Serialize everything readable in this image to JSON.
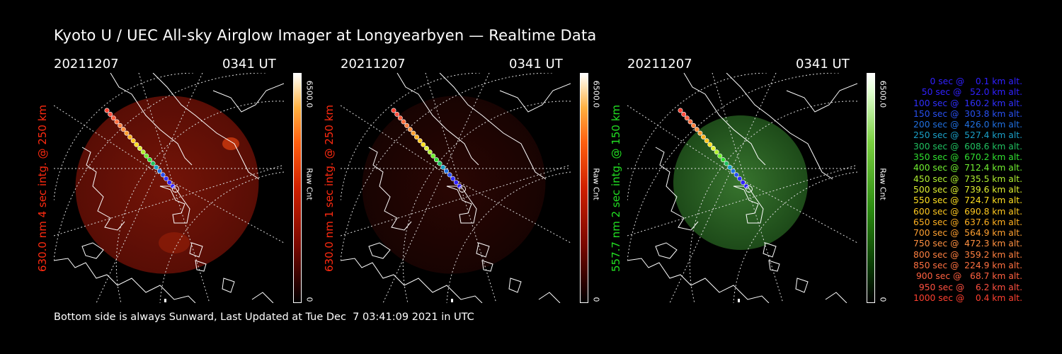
{
  "title": "Kyoto U / UEC All-sky Airglow Imager at Longyearbyen — Realtime Data",
  "footer": "Bottom side is always Sunward, Last Updated at Tue Dec  7 03:41:09 2021 in UTC",
  "panels": [
    {
      "date": "20211207",
      "time": "0341 UT",
      "side_label": "630.0 nm 4 sec intg. @ 250 km",
      "label_color": "#ff2a10",
      "cbar_max": "6500.0",
      "cbar_min": "0",
      "cbar_unit": "Raw Cnt",
      "glow": "red-strong",
      "colormap": "red"
    },
    {
      "date": "20211207",
      "time": "0341 UT",
      "side_label": "630.0 nm 1 sec intg. @ 250 km",
      "label_color": "#ff2a10",
      "cbar_max": "6500.0",
      "cbar_min": "0",
      "cbar_unit": "Raw Cnt",
      "glow": "red-faint",
      "colormap": "red"
    },
    {
      "date": "20211207",
      "time": "0341 UT",
      "side_label": "557.7 nm 2 sec intg. @ 150 km",
      "label_color": "#22e022",
      "cbar_max": "6500.0",
      "cbar_min": "0",
      "cbar_unit": "Raw Cnt",
      "glow": "green",
      "colormap": "green"
    }
  ],
  "legend": [
    {
      "text": "   0 sec @    0.1 km alt.",
      "color": "#3020ff"
    },
    {
      "text": "  50 sec @   52.0 km alt.",
      "color": "#3020ff"
    },
    {
      "text": " 100 sec @  160.2 km alt.",
      "color": "#3030ff"
    },
    {
      "text": " 150 sec @  303.8 km alt.",
      "color": "#2850f0"
    },
    {
      "text": " 200 sec @  426.0 km alt.",
      "color": "#2070e0"
    },
    {
      "text": " 250 sec @  527.4 km alt.",
      "color": "#1aa0c8"
    },
    {
      "text": " 300 sec @  608.6 km alt.",
      "color": "#20c060"
    },
    {
      "text": " 350 sec @  670.2 km alt.",
      "color": "#30e030"
    },
    {
      "text": " 400 sec @  712.4 km alt.",
      "color": "#70f030"
    },
    {
      "text": " 450 sec @  735.5 km alt.",
      "color": "#b0f030"
    },
    {
      "text": " 500 sec @  739.6 km alt.",
      "color": "#e0f030"
    },
    {
      "text": " 550 sec @  724.7 km alt.",
      "color": "#ffe020"
    },
    {
      "text": " 600 sec @  690.8 km alt.",
      "color": "#ffc820"
    },
    {
      "text": " 650 sec @  637.6 km alt.",
      "color": "#ffb020"
    },
    {
      "text": " 700 sec @  564.9 km alt.",
      "color": "#ffa030"
    },
    {
      "text": " 750 sec @  472.3 km alt.",
      "color": "#ff9040"
    },
    {
      "text": " 800 sec @  359.2 km alt.",
      "color": "#ff8040"
    },
    {
      "text": " 850 sec @  224.9 km alt.",
      "color": "#ff7040"
    },
    {
      "text": " 900 sec @   68.7 km alt.",
      "color": "#ff6040"
    },
    {
      "text": " 950 sec @    6.2 km alt.",
      "color": "#ff5040"
    },
    {
      "text": "1000 sec @    0.4 km alt.",
      "color": "#ff4030"
    }
  ]
}
